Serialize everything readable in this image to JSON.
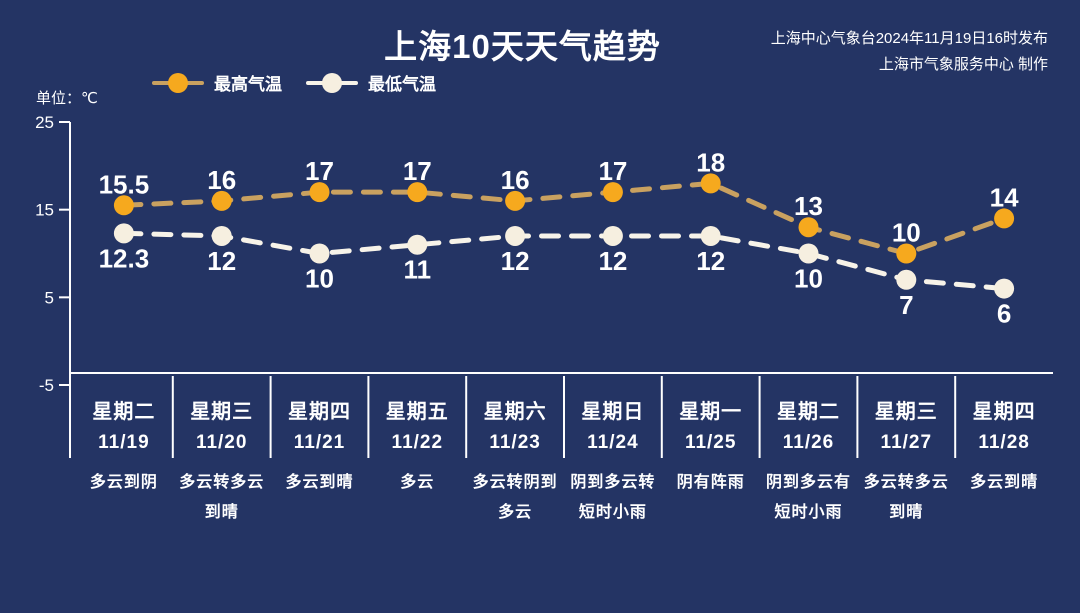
{
  "page": {
    "background": "#243464"
  },
  "header": {
    "title": "上海10天天气趋势",
    "publisher_line1": "上海中心气象台2024年11月19日16时发布",
    "publisher_line2": "上海市气象服务中心 制作",
    "unit_label": "单位：℃"
  },
  "legend": {
    "high": "最高气温",
    "low": "最低气温"
  },
  "colors": {
    "background": "#243464",
    "axis": "#ffffff",
    "high_dot": "#f6a91e",
    "high_line": "#c9a160",
    "high_label_top": "#f4dda4",
    "high_label_bottom": "#bd832c",
    "low_dot": "#f6efe0",
    "low_line": "#f7f3e9",
    "low_label": "#ffffff"
  },
  "chart_data": {
    "type": "line",
    "title": "上海10天天气趋势",
    "ylabel": "℃",
    "ylim": [
      -5,
      25
    ],
    "yticks": [
      25,
      15,
      5,
      -5
    ],
    "grid": false,
    "legend_position": "top-left",
    "categories": [
      {
        "weekday": "星期二",
        "date": "11/19",
        "weather": "多云到阴",
        "weather_lines": [
          "多云到阴"
        ]
      },
      {
        "weekday": "星期三",
        "date": "11/20",
        "weather": "多云转多云到晴",
        "weather_lines": [
          "多云转多云",
          "到晴"
        ]
      },
      {
        "weekday": "星期四",
        "date": "11/21",
        "weather": "多云到晴",
        "weather_lines": [
          "多云到晴"
        ]
      },
      {
        "weekday": "星期五",
        "date": "11/22",
        "weather": "多云",
        "weather_lines": [
          "多云"
        ]
      },
      {
        "weekday": "星期六",
        "date": "11/23",
        "weather": "多云转阴到多云",
        "weather_lines": [
          "多云转阴到",
          "多云"
        ]
      },
      {
        "weekday": "星期日",
        "date": "11/24",
        "weather": "阴到多云转短时小雨",
        "weather_lines": [
          "阴到多云转",
          "短时小雨"
        ]
      },
      {
        "weekday": "星期一",
        "date": "11/25",
        "weather": "阴有阵雨",
        "weather_lines": [
          "阴有阵雨"
        ]
      },
      {
        "weekday": "星期二",
        "date": "11/26",
        "weather": "阴到多云有短时小雨",
        "weather_lines": [
          "阴到多云有",
          "短时小雨"
        ]
      },
      {
        "weekday": "星期三",
        "date": "11/27",
        "weather": "多云转多云到晴",
        "weather_lines": [
          "多云转多云",
          "到晴"
        ]
      },
      {
        "weekday": "星期四",
        "date": "11/28",
        "weather": "多云到晴",
        "weather_lines": [
          "多云到晴"
        ]
      }
    ],
    "series": [
      {
        "name": "最高气温",
        "values": [
          15.5,
          16,
          17,
          17,
          16,
          17,
          18,
          13,
          10,
          14
        ]
      },
      {
        "name": "最低气温",
        "values": [
          12.3,
          12,
          10,
          11,
          12,
          12,
          12,
          10,
          7,
          6
        ]
      }
    ]
  }
}
